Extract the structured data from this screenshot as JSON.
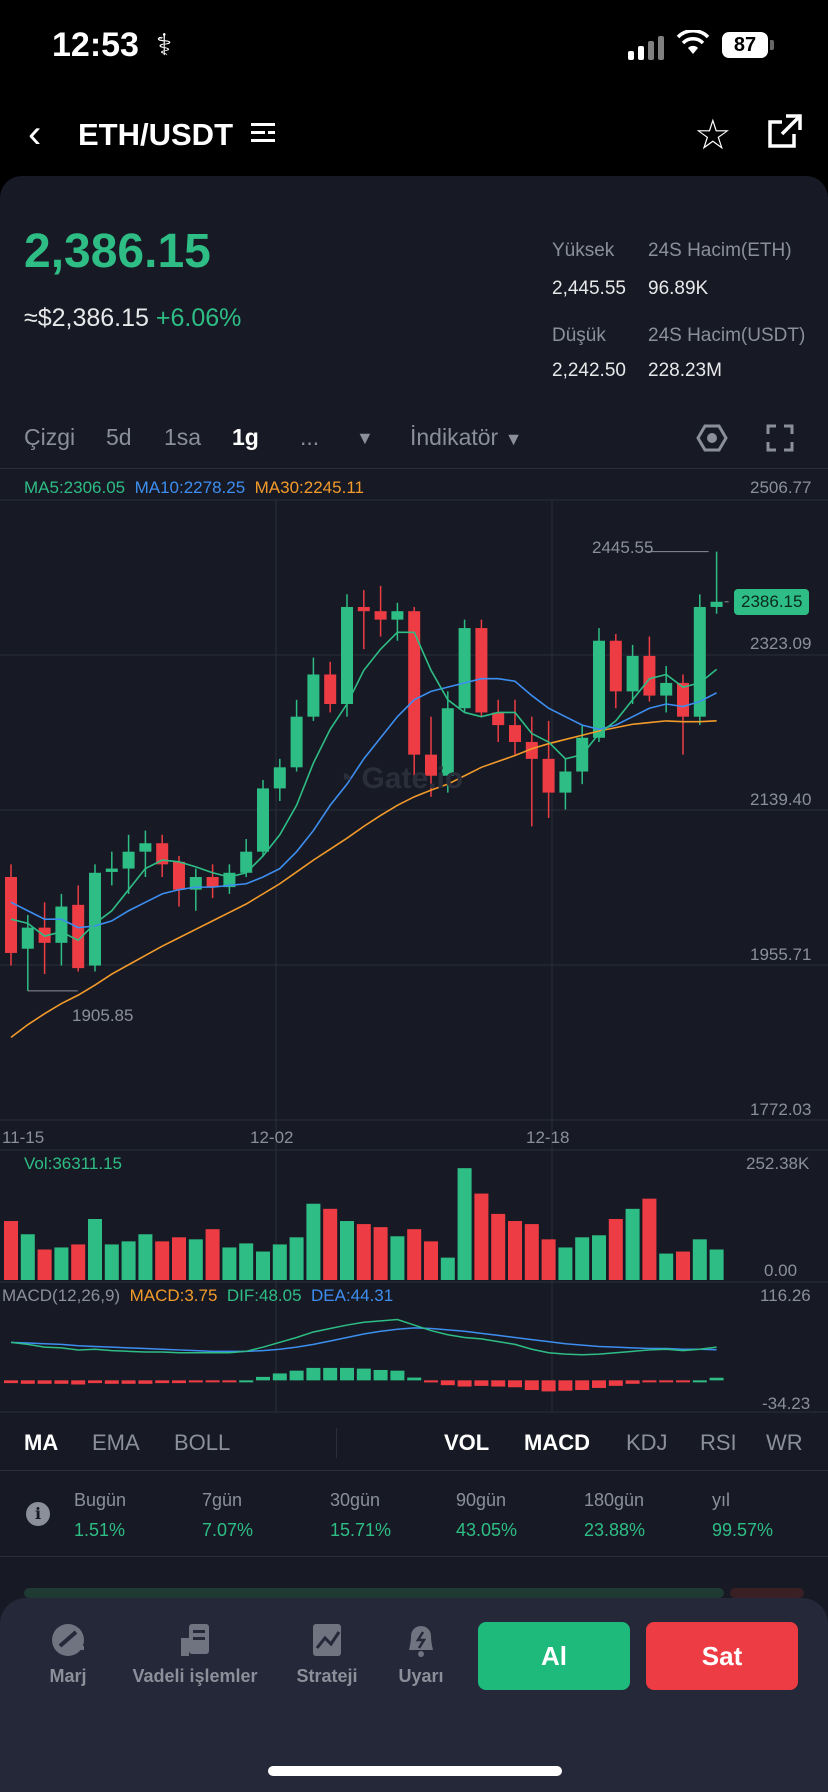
{
  "status_bar": {
    "time": "12:53",
    "battery": "87"
  },
  "header": {
    "pair": "ETH/USDT"
  },
  "ticker": {
    "price": "2,386.15",
    "usd_price": "≈$2,386.15",
    "change": "+6.06%",
    "high_label": "Yüksek",
    "high_value": "2,445.55",
    "low_label": "Düşük",
    "low_value": "2,242.50",
    "vol_eth_label": "24S Hacim(ETH)",
    "vol_eth_value": "96.89K",
    "vol_usdt_label": "24S Hacim(USDT)",
    "vol_usdt_value": "228.23M"
  },
  "timeframes": {
    "line": "Çizgi",
    "d5": "5d",
    "h1": "1sa",
    "d1": "1g",
    "more": "...",
    "indicator": "İndikatör",
    "active": "1g"
  },
  "legend": {
    "ma5": "MA5:2306.05",
    "ma10": "MA10:2278.25",
    "ma30": "MA30:2245.11"
  },
  "axis": {
    "y1": "2506.77",
    "y2": "2323.09",
    "y3": "2139.40",
    "y4": "1955.71",
    "y5": "1772.03",
    "current": "2386.15",
    "high_mark": "2445.55",
    "low_mark": "1905.85",
    "x1": "11-15",
    "x2": "12-02",
    "x3": "12-18"
  },
  "volume": {
    "label": "Vol:36311.15",
    "max": "252.38K",
    "min": "0.00"
  },
  "macd": {
    "label": "MACD(12,26,9)",
    "macd": "MACD:3.75",
    "dif": "DIF:48.05",
    "dea": "DEA:44.31",
    "max": "116.26",
    "min": "-34.23"
  },
  "indicator_tabs": {
    "ma": "MA",
    "ema": "EMA",
    "boll": "BOLL",
    "vol": "VOL",
    "macd": "MACD",
    "kdj": "KDJ",
    "rsi": "RSI",
    "wr": "WR"
  },
  "performance": [
    {
      "label": "Bugün",
      "value": "1.51%"
    },
    {
      "label": "7gün",
      "value": "7.07%"
    },
    {
      "label": "30gün",
      "value": "15.71%"
    },
    {
      "label": "90gün",
      "value": "43.05%"
    },
    {
      "label": "180gün",
      "value": "23.88%"
    },
    {
      "label": "yıl",
      "value": "99.57%"
    }
  ],
  "bottom_nav": {
    "marj": "Marj",
    "futures": "Vadeli işlemler",
    "strategy": "Strateji",
    "alert": "Uyarı",
    "buy": "Al",
    "sell": "Sat"
  },
  "colors": {
    "up": "#2ebd85",
    "down": "#ee3c44",
    "ma5": "#2ebd85",
    "ma10": "#3d8ef0",
    "ma30": "#f39a2b",
    "background": "#171a24"
  },
  "chart_data": {
    "type": "candlestick",
    "ylim": [
      1772.03,
      2506.77
    ],
    "candles": [
      {
        "o": 2060,
        "h": 2075,
        "l": 1955,
        "c": 1970
      },
      {
        "o": 1975,
        "h": 2015,
        "l": 1925,
        "c": 2000
      },
      {
        "o": 2000,
        "h": 2030,
        "l": 1945,
        "c": 1982
      },
      {
        "o": 1982,
        "h": 2040,
        "l": 1955,
        "c": 2025
      },
      {
        "o": 2027,
        "h": 2050,
        "l": 1948,
        "c": 1952
      },
      {
        "o": 1955,
        "h": 2075,
        "l": 1948,
        "c": 2065
      },
      {
        "o": 2066,
        "h": 2090,
        "l": 2050,
        "c": 2070
      },
      {
        "o": 2070,
        "h": 2110,
        "l": 2040,
        "c": 2090
      },
      {
        "o": 2090,
        "h": 2115,
        "l": 2060,
        "c": 2100
      },
      {
        "o": 2100,
        "h": 2110,
        "l": 2060,
        "c": 2075
      },
      {
        "o": 2078,
        "h": 2085,
        "l": 2025,
        "c": 2045
      },
      {
        "o": 2045,
        "h": 2070,
        "l": 2020,
        "c": 2060
      },
      {
        "o": 2060,
        "h": 2075,
        "l": 2035,
        "c": 2048
      },
      {
        "o": 2048,
        "h": 2075,
        "l": 2040,
        "c": 2065
      },
      {
        "o": 2065,
        "h": 2105,
        "l": 2060,
        "c": 2090
      },
      {
        "o": 2090,
        "h": 2175,
        "l": 2085,
        "c": 2165
      },
      {
        "o": 2165,
        "h": 2200,
        "l": 2150,
        "c": 2190
      },
      {
        "o": 2190,
        "h": 2270,
        "l": 2185,
        "c": 2250
      },
      {
        "o": 2250,
        "h": 2320,
        "l": 2245,
        "c": 2300
      },
      {
        "o": 2300,
        "h": 2315,
        "l": 2255,
        "c": 2265
      },
      {
        "o": 2265,
        "h": 2395,
        "l": 2250,
        "c": 2380
      },
      {
        "o": 2380,
        "h": 2400,
        "l": 2330,
        "c": 2375
      },
      {
        "o": 2375,
        "h": 2405,
        "l": 2345,
        "c": 2365
      },
      {
        "o": 2365,
        "h": 2385,
        "l": 2340,
        "c": 2375
      },
      {
        "o": 2375,
        "h": 2380,
        "l": 2175,
        "c": 2205
      },
      {
        "o": 2205,
        "h": 2250,
        "l": 2155,
        "c": 2180
      },
      {
        "o": 2180,
        "h": 2280,
        "l": 2160,
        "c": 2260
      },
      {
        "o": 2260,
        "h": 2365,
        "l": 2255,
        "c": 2355
      },
      {
        "o": 2355,
        "h": 2365,
        "l": 2250,
        "c": 2255
      },
      {
        "o": 2255,
        "h": 2270,
        "l": 2220,
        "c": 2240
      },
      {
        "o": 2240,
        "h": 2270,
        "l": 2205,
        "c": 2220
      },
      {
        "o": 2220,
        "h": 2250,
        "l": 2120,
        "c": 2200
      },
      {
        "o": 2200,
        "h": 2245,
        "l": 2130,
        "c": 2160
      },
      {
        "o": 2160,
        "h": 2200,
        "l": 2140,
        "c": 2185
      },
      {
        "o": 2185,
        "h": 2240,
        "l": 2170,
        "c": 2225
      },
      {
        "o": 2225,
        "h": 2355,
        "l": 2220,
        "c": 2340
      },
      {
        "o": 2340,
        "h": 2348,
        "l": 2260,
        "c": 2280
      },
      {
        "o": 2280,
        "h": 2335,
        "l": 2265,
        "c": 2322
      },
      {
        "o": 2322,
        "h": 2345,
        "l": 2268,
        "c": 2275
      },
      {
        "o": 2275,
        "h": 2310,
        "l": 2255,
        "c": 2290
      },
      {
        "o": 2290,
        "h": 2300,
        "l": 2205,
        "c": 2250
      },
      {
        "o": 2250,
        "h": 2395,
        "l": 2240,
        "c": 2380
      },
      {
        "o": 2380,
        "h": 2445.55,
        "l": 2372,
        "c": 2386.15
      }
    ],
    "ma5": [
      2010,
      2005,
      1990,
      1995,
      1985,
      2005,
      2020,
      2045,
      2070,
      2080,
      2078,
      2072,
      2065,
      2060,
      2065,
      2085,
      2110,
      2145,
      2195,
      2235,
      2265,
      2305,
      2330,
      2350,
      2350,
      2305,
      2270,
      2255,
      2250,
      2255,
      2255,
      2230,
      2220,
      2200,
      2205,
      2230,
      2245,
      2270,
      2295,
      2300,
      2285,
      2290,
      2306.05
    ],
    "ma10": [
      2030,
      2020,
      2010,
      2010,
      2000,
      2002,
      2008,
      2020,
      2030,
      2040,
      2045,
      2048,
      2048,
      2050,
      2052,
      2060,
      2070,
      2090,
      2115,
      2145,
      2170,
      2200,
      2225,
      2250,
      2270,
      2280,
      2285,
      2290,
      2295,
      2295,
      2292,
      2275,
      2260,
      2250,
      2240,
      2235,
      2240,
      2250,
      2260,
      2265,
      2262,
      2268,
      2278.25
    ],
    "ma30": [
      1870,
      1885,
      1898,
      1910,
      1920,
      1932,
      1945,
      1956,
      1967,
      1978,
      1988,
      1998,
      2008,
      2018,
      2028,
      2040,
      2052,
      2066,
      2080,
      2093,
      2106,
      2120,
      2133,
      2145,
      2155,
      2163,
      2170,
      2180,
      2190,
      2197,
      2204,
      2212,
      2218,
      2223,
      2228,
      2233,
      2237,
      2241,
      2243,
      2245,
      2244,
      2244,
      2245.11
    ],
    "volume": [
      58,
      45,
      30,
      32,
      35,
      60,
      35,
      38,
      45,
      38,
      42,
      40,
      50,
      32,
      36,
      28,
      35,
      42,
      75,
      70,
      58,
      55,
      52,
      43,
      50,
      38,
      22,
      110,
      85,
      65,
      58,
      55,
      40,
      32,
      42,
      44,
      60,
      70,
      80,
      26,
      28,
      40,
      30
    ],
    "volume_max": 252.38,
    "dif": [
      55,
      52,
      48,
      47,
      44,
      45,
      43,
      42,
      41,
      41,
      40,
      40,
      40,
      40,
      42,
      48,
      55,
      62,
      70,
      75,
      80,
      84,
      86,
      88,
      80,
      72,
      66,
      62,
      60,
      56,
      52,
      45,
      40,
      38,
      37,
      38,
      40,
      42,
      44,
      45,
      43,
      45,
      48.05
    ],
    "dea": [
      55,
      54,
      53,
      52,
      50,
      49,
      48,
      47,
      46,
      45,
      44,
      43,
      42,
      42,
      42,
      43,
      45,
      48,
      52,
      57,
      62,
      67,
      71,
      74,
      76,
      75,
      73,
      71,
      68,
      65,
      62,
      59,
      56,
      53,
      51,
      49,
      48,
      47,
      46,
      46,
      45,
      45,
      44.31
    ],
    "macd_hist": [
      -4,
      -5,
      -5,
      -5,
      -6,
      -4,
      -5,
      -5,
      -5,
      -4,
      -4,
      -3,
      -2,
      -2,
      0,
      5,
      10,
      14,
      18,
      18,
      18,
      17,
      15,
      14,
      4,
      -3,
      -7,
      -9,
      -8,
      -9,
      -10,
      -14,
      -16,
      -15,
      -14,
      -11,
      -8,
      -5,
      -2,
      -1,
      -2,
      0,
      3.75
    ],
    "macd_ylim": [
      -34.23,
      116.26
    ]
  }
}
